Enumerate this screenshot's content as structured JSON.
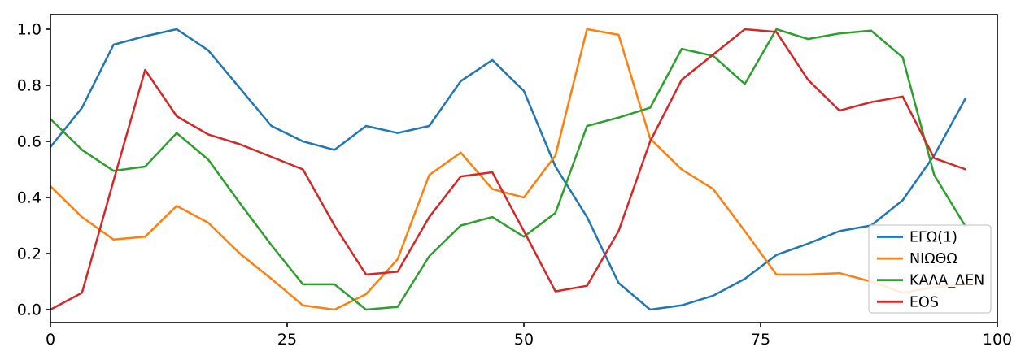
{
  "figure": {
    "background": "#ffffff",
    "axis_color": "#000000"
  },
  "chart_data": {
    "type": "line",
    "title": "",
    "xlabel": "",
    "ylabel": "",
    "grid": false,
    "xlim": [
      0,
      100
    ],
    "ylim": [
      -0.05,
      1.05
    ],
    "x_ticks": {
      "values": [
        0,
        25,
        50,
        75,
        100
      ],
      "labels": [
        "0",
        "25",
        "50",
        "75",
        "100"
      ]
    },
    "y_ticks": {
      "values": [
        0.0,
        0.2,
        0.4,
        0.6,
        0.8,
        1.0
      ],
      "labels": [
        "0.0",
        "0.2",
        "0.4",
        "0.6",
        "0.8",
        "1.0"
      ]
    },
    "x": [
      0,
      3.33,
      6.67,
      10,
      13.33,
      16.67,
      20,
      23.33,
      26.67,
      30,
      33.33,
      36.67,
      40,
      43.33,
      46.67,
      50,
      53.33,
      56.67,
      60,
      63.33,
      66.67,
      70,
      73.33,
      76.67,
      80,
      83.33,
      86.67,
      90,
      93.33,
      96.67
    ],
    "series": [
      {
        "name": "ΕΓΩ(1)",
        "color": "#1f77b4",
        "values": [
          0.58,
          0.72,
          0.945,
          0.975,
          1.0,
          0.925,
          0.79,
          0.655,
          0.6,
          0.57,
          0.655,
          0.63,
          0.655,
          0.815,
          0.89,
          0.78,
          0.51,
          0.33,
          0.095,
          0.0,
          0.015,
          0.05,
          0.11,
          0.195,
          0.235,
          0.28,
          0.3,
          0.39,
          0.55,
          0.755
        ]
      },
      {
        "name": "ΝΙΩΘΩ",
        "color": "#ff7f0e",
        "values": [
          0.44,
          0.33,
          0.25,
          0.26,
          0.37,
          0.31,
          0.2,
          0.11,
          0.015,
          0.0,
          0.055,
          0.18,
          0.48,
          0.56,
          0.43,
          0.4,
          0.55,
          1.0,
          0.98,
          0.61,
          0.5,
          0.43,
          0.28,
          0.125,
          0.125,
          0.13,
          0.1,
          0.06,
          0.08,
          0.09
        ]
      },
      {
        "name": "ΚΑΛΑ_ΔΕΝ",
        "color": "#2ca02c",
        "values": [
          0.68,
          0.57,
          0.495,
          0.51,
          0.63,
          0.535,
          0.38,
          0.23,
          0.09,
          0.09,
          0.0,
          0.01,
          0.19,
          0.3,
          0.33,
          0.26,
          0.345,
          0.655,
          0.685,
          0.72,
          0.93,
          0.905,
          0.805,
          1.0,
          0.965,
          0.985,
          0.995,
          0.9,
          0.48,
          0.295
        ]
      },
      {
        "name": "EOS",
        "color": "#d62728",
        "values": [
          0.0,
          0.06,
          0.46,
          0.855,
          0.69,
          0.625,
          0.59,
          0.545,
          0.5,
          0.3,
          0.125,
          0.135,
          0.33,
          0.475,
          0.49,
          0.28,
          0.065,
          0.085,
          0.28,
          0.6,
          0.82,
          0.91,
          1.0,
          0.99,
          0.82,
          0.71,
          0.74,
          0.76,
          0.54,
          0.5
        ]
      }
    ],
    "legend": {
      "position": "lower right",
      "bg_color": "#ffffff",
      "border_color": "#cccccc",
      "entries": [
        "ΕΓΩ(1)",
        "ΝΙΩΘΩ",
        "ΚΑΛΑ_ΔΕΝ",
        "EOS"
      ]
    }
  }
}
